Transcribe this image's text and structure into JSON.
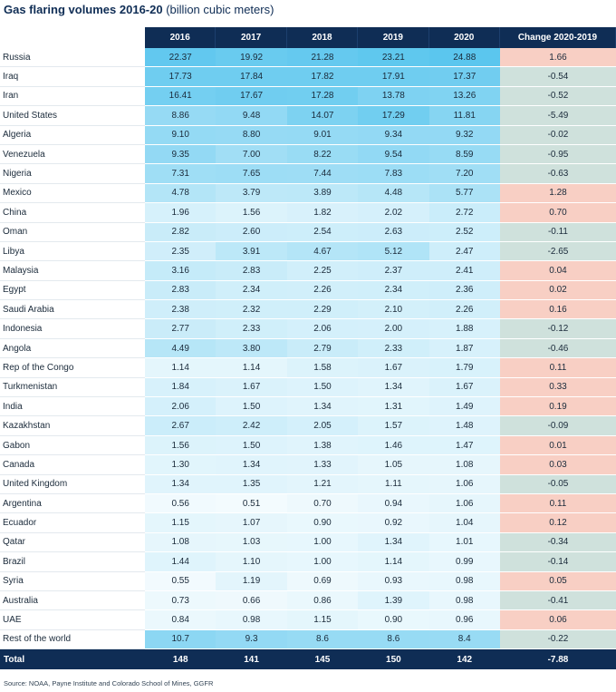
{
  "title": "Gas flaring volumes 2016-20",
  "subtitle": "(billion cubic meters)",
  "source": "Source: NOAA, Payne Institute and Colorado School of Mines, GGFR",
  "colors": {
    "header_bg": "#0f2d55",
    "scale_low": "#ffffff",
    "scale_high": "#5bc6ee",
    "change_positive": "#f8cfc4",
    "change_negative": "#cfe1dc"
  },
  "chart_data": {
    "type": "table",
    "title": "Gas flaring volumes 2016-20",
    "subtitle": "(billion cubic meters)",
    "columns": [
      "2016",
      "2017",
      "2018",
      "2019",
      "2020",
      "Change 2020-2019"
    ],
    "rows": [
      {
        "country": "Russia",
        "values": [
          "22.37",
          "19.92",
          "21.28",
          "23.21",
          "24.88"
        ],
        "change": "1.66"
      },
      {
        "country": "Iraq",
        "values": [
          "17.73",
          "17.84",
          "17.82",
          "17.91",
          "17.37"
        ],
        "change": "-0.54"
      },
      {
        "country": "Iran",
        "values": [
          "16.41",
          "17.67",
          "17.28",
          "13.78",
          "13.26"
        ],
        "change": "-0.52"
      },
      {
        "country": "United States",
        "values": [
          "8.86",
          "9.48",
          "14.07",
          "17.29",
          "11.81"
        ],
        "change": "-5.49"
      },
      {
        "country": "Algeria",
        "values": [
          "9.10",
          "8.80",
          "9.01",
          "9.34",
          "9.32"
        ],
        "change": "-0.02"
      },
      {
        "country": "Venezuela",
        "values": [
          "9.35",
          "7.00",
          "8.22",
          "9.54",
          "8.59"
        ],
        "change": "-0.95"
      },
      {
        "country": "Nigeria",
        "values": [
          "7.31",
          "7.65",
          "7.44",
          "7.83",
          "7.20"
        ],
        "change": "-0.63"
      },
      {
        "country": "Mexico",
        "values": [
          "4.78",
          "3.79",
          "3.89",
          "4.48",
          "5.77"
        ],
        "change": "1.28"
      },
      {
        "country": "China",
        "values": [
          "1.96",
          "1.56",
          "1.82",
          "2.02",
          "2.72"
        ],
        "change": "0.70"
      },
      {
        "country": "Oman",
        "values": [
          "2.82",
          "2.60",
          "2.54",
          "2.63",
          "2.52"
        ],
        "change": "-0.11"
      },
      {
        "country": "Libya",
        "values": [
          "2.35",
          "3.91",
          "4.67",
          "5.12",
          "2.47"
        ],
        "change": "-2.65"
      },
      {
        "country": "Malaysia",
        "values": [
          "3.16",
          "2.83",
          "2.25",
          "2.37",
          "2.41"
        ],
        "change": "0.04"
      },
      {
        "country": "Egypt",
        "values": [
          "2.83",
          "2.34",
          "2.26",
          "2.34",
          "2.36"
        ],
        "change": "0.02"
      },
      {
        "country": "Saudi Arabia",
        "values": [
          "2.38",
          "2.32",
          "2.29",
          "2.10",
          "2.26"
        ],
        "change": "0.16"
      },
      {
        "country": "Indonesia",
        "values": [
          "2.77",
          "2.33",
          "2.06",
          "2.00",
          "1.88"
        ],
        "change": "-0.12"
      },
      {
        "country": "Angola",
        "values": [
          "4.49",
          "3.80",
          "2.79",
          "2.33",
          "1.87"
        ],
        "change": "-0.46"
      },
      {
        "country": "Rep of the Congo",
        "values": [
          "1.14",
          "1.14",
          "1.58",
          "1.67",
          "1.79"
        ],
        "change": "0.11"
      },
      {
        "country": "Turkmenistan",
        "values": [
          "1.84",
          "1.67",
          "1.50",
          "1.34",
          "1.67"
        ],
        "change": "0.33"
      },
      {
        "country": "India",
        "values": [
          "2.06",
          "1.50",
          "1.34",
          "1.31",
          "1.49"
        ],
        "change": "0.19"
      },
      {
        "country": "Kazakhstan",
        "values": [
          "2.67",
          "2.42",
          "2.05",
          "1.57",
          "1.48"
        ],
        "change": "-0.09"
      },
      {
        "country": "Gabon",
        "values": [
          "1.56",
          "1.50",
          "1.38",
          "1.46",
          "1.47"
        ],
        "change": "0.01"
      },
      {
        "country": "Canada",
        "values": [
          "1.30",
          "1.34",
          "1.33",
          "1.05",
          "1.08"
        ],
        "change": "0.03"
      },
      {
        "country": "United Kingdom",
        "values": [
          "1.34",
          "1.35",
          "1.21",
          "1.11",
          "1.06"
        ],
        "change": "-0.05"
      },
      {
        "country": "Argentina",
        "values": [
          "0.56",
          "0.51",
          "0.70",
          "0.94",
          "1.06"
        ],
        "change": "0.11"
      },
      {
        "country": "Ecuador",
        "values": [
          "1.15",
          "1.07",
          "0.90",
          "0.92",
          "1.04"
        ],
        "change": "0.12"
      },
      {
        "country": "Qatar",
        "values": [
          "1.08",
          "1.03",
          "1.00",
          "1.34",
          "1.01"
        ],
        "change": "-0.34"
      },
      {
        "country": "Brazil",
        "values": [
          "1.44",
          "1.10",
          "1.00",
          "1.14",
          "0.99"
        ],
        "change": "-0.14"
      },
      {
        "country": "Syria",
        "values": [
          "0.55",
          "1.19",
          "0.69",
          "0.93",
          "0.98"
        ],
        "change": "0.05"
      },
      {
        "country": "Australia",
        "values": [
          "0.73",
          "0.66",
          "0.86",
          "1.39",
          "0.98"
        ],
        "change": "-0.41"
      },
      {
        "country": "UAE",
        "values": [
          "0.84",
          "0.98",
          "1.15",
          "0.90",
          "0.96"
        ],
        "change": "0.06"
      },
      {
        "country": "Rest of the world",
        "values": [
          "10.7",
          "9.3",
          "8.6",
          "8.6",
          "8.4"
        ],
        "change": "-0.22"
      }
    ],
    "total": {
      "label": "Total",
      "values": [
        "148",
        "141",
        "145",
        "150",
        "142"
      ],
      "change": "-7.88"
    }
  }
}
